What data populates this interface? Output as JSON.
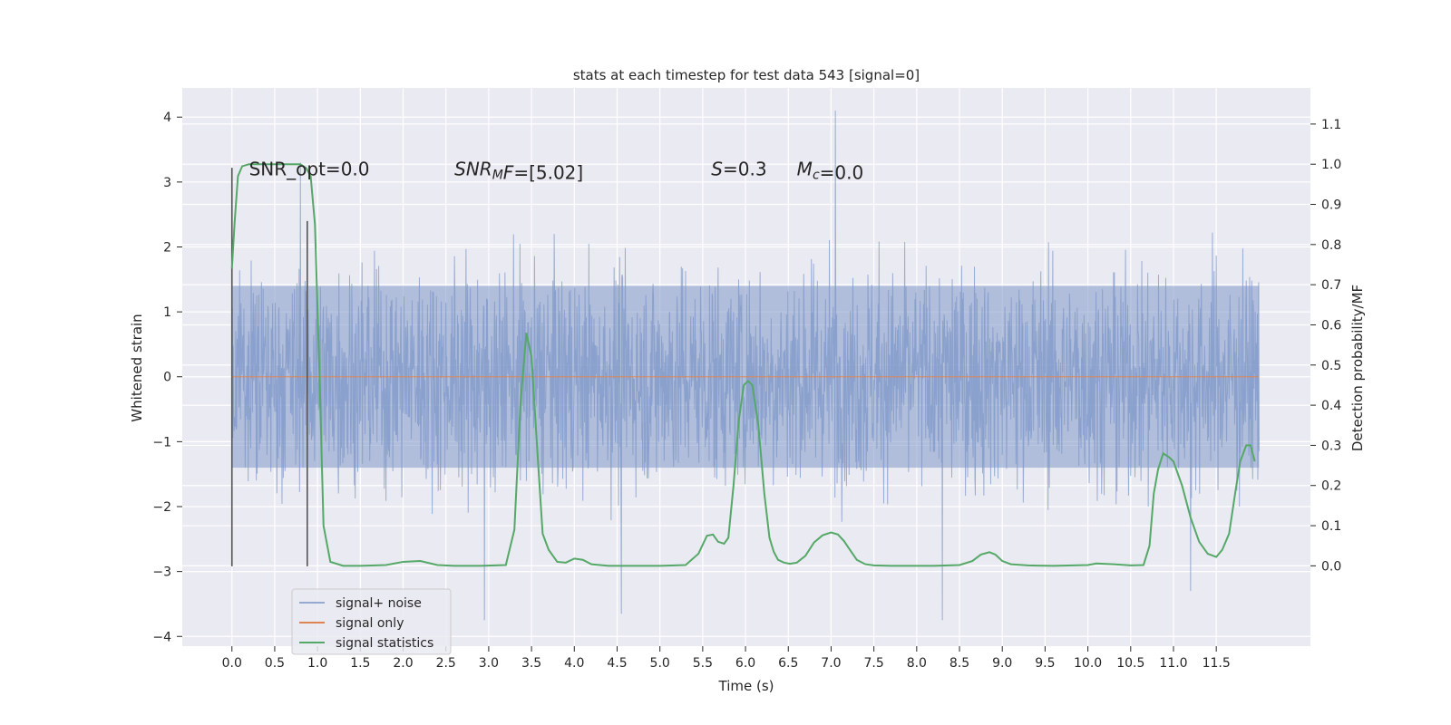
{
  "chart_data": {
    "type": "line",
    "title": "stats at each timestep for test data 543 [signal=0]",
    "xlabel": "Time (s)",
    "ylabel_left": "Whitened strain",
    "ylabel_right": "Detection probability/MF",
    "xlim": [
      -0.58,
      12.6
    ],
    "ylim_left": [
      -4.15,
      4.45
    ],
    "ylim_right": [
      -0.2,
      1.19
    ],
    "x_ticks": [
      0.0,
      0.5,
      1.0,
      1.5,
      2.0,
      2.5,
      3.0,
      3.5,
      4.0,
      4.5,
      5.0,
      5.5,
      6.0,
      6.5,
      7.0,
      7.5,
      8.0,
      8.5,
      9.0,
      9.5,
      10.0,
      10.5,
      11.0,
      11.5
    ],
    "x_tick_labels": [
      "0.0",
      "0.5",
      "1.0",
      "1.5",
      "2.0",
      "2.5",
      "3.0",
      "3.5",
      "4.0",
      "4.5",
      "5.0",
      "5.5",
      "6.0",
      "6.5",
      "7.0",
      "7.5",
      "8.0",
      "8.5",
      "9.0",
      "9.5",
      "10.0",
      "10.5",
      "11.0",
      "11.5"
    ],
    "y_left_ticks": [
      -4,
      -3,
      -2,
      -1,
      0,
      1,
      2,
      3,
      4
    ],
    "y_left_tick_labels": [
      "−4",
      "−3",
      "−2",
      "−1",
      "0",
      "1",
      "2",
      "3",
      "4"
    ],
    "y_right_ticks": [
      0.0,
      0.1,
      0.2,
      0.3,
      0.4,
      0.5,
      0.6,
      0.7,
      0.8,
      0.9,
      1.0,
      1.1
    ],
    "y_right_tick_labels": [
      "0.0",
      "0.1",
      "0.2",
      "0.3",
      "0.4",
      "0.5",
      "0.6",
      "0.7",
      "0.8",
      "0.9",
      "1.0",
      "1.1"
    ],
    "grid": true,
    "legend_position": "bottom-left",
    "colors": {
      "background": "#eaeaf2",
      "grid": "#ffffff",
      "noise": "#7f98c8",
      "signal_only": "#dd8452",
      "statistics": "#55a868",
      "vlines": "#555555"
    },
    "series": [
      {
        "name": "signal+ noise",
        "axis": "left",
        "x_range": [
          0.0,
          12.0
        ],
        "note_style": "dense noise band",
        "band_core": [
          -1.6,
          1.6
        ],
        "typical_peaks": [
          -2.9,
          3.3
        ],
        "extremes": [
          {
            "x": 7.05,
            "y": 4.1
          },
          {
            "x": 0.8,
            "y": 3.3
          },
          {
            "x": 2.95,
            "y": -3.75
          },
          {
            "x": 4.55,
            "y": -3.65
          },
          {
            "x": 8.3,
            "y": -3.75
          },
          {
            "x": 11.2,
            "y": -3.3
          }
        ]
      },
      {
        "name": "signal only",
        "axis": "left",
        "x": [
          0.0,
          12.0
        ],
        "y": [
          0.0,
          0.0
        ]
      },
      {
        "name": "signal statistics",
        "axis": "right",
        "x": [
          0.0,
          0.03,
          0.07,
          0.12,
          0.2,
          0.3,
          0.5,
          0.7,
          0.8,
          0.87,
          0.92,
          0.97,
          1.02,
          1.07,
          1.15,
          1.3,
          1.5,
          1.8,
          2.0,
          2.2,
          2.4,
          2.6,
          2.9,
          3.2,
          3.3,
          3.37,
          3.44,
          3.5,
          3.57,
          3.63,
          3.7,
          3.8,
          3.9,
          4.0,
          4.1,
          4.2,
          4.4,
          4.7,
          5.0,
          5.3,
          5.45,
          5.55,
          5.62,
          5.68,
          5.75,
          5.8,
          5.86,
          5.92,
          5.98,
          6.03,
          6.08,
          6.15,
          6.22,
          6.28,
          6.33,
          6.38,
          6.45,
          6.52,
          6.6,
          6.7,
          6.8,
          6.9,
          7.0,
          7.08,
          7.15,
          7.22,
          7.3,
          7.4,
          7.5,
          7.7,
          7.9,
          8.2,
          8.5,
          8.65,
          8.75,
          8.85,
          8.92,
          9.0,
          9.1,
          9.3,
          9.6,
          10.0,
          10.1,
          10.3,
          10.5,
          10.65,
          10.72,
          10.77,
          10.82,
          10.88,
          10.95,
          11.0,
          11.1,
          11.2,
          11.3,
          11.4,
          11.5,
          11.57,
          11.65,
          11.72,
          11.78,
          11.85,
          11.9,
          11.95
        ],
        "y": [
          0.74,
          0.85,
          0.97,
          0.995,
          1.0,
          1.0,
          1.0,
          1.0,
          1.0,
          0.99,
          0.97,
          0.85,
          0.5,
          0.1,
          0.01,
          0.0,
          0.0,
          0.002,
          0.01,
          0.012,
          0.002,
          0.0,
          0.0,
          0.002,
          0.09,
          0.4,
          0.58,
          0.52,
          0.28,
          0.08,
          0.04,
          0.01,
          0.008,
          0.018,
          0.015,
          0.004,
          0.0,
          0.0,
          0.0,
          0.002,
          0.03,
          0.075,
          0.078,
          0.06,
          0.055,
          0.07,
          0.2,
          0.36,
          0.45,
          0.46,
          0.45,
          0.35,
          0.18,
          0.07,
          0.035,
          0.015,
          0.008,
          0.005,
          0.008,
          0.025,
          0.058,
          0.076,
          0.083,
          0.078,
          0.062,
          0.04,
          0.015,
          0.004,
          0.001,
          0.0,
          0.0,
          0.0,
          0.002,
          0.012,
          0.028,
          0.034,
          0.028,
          0.012,
          0.004,
          0.001,
          0.0,
          0.002,
          0.006,
          0.004,
          0.001,
          0.002,
          0.05,
          0.18,
          0.24,
          0.28,
          0.27,
          0.26,
          0.2,
          0.12,
          0.06,
          0.03,
          0.022,
          0.04,
          0.08,
          0.18,
          0.26,
          0.3,
          0.3,
          0.26
        ]
      }
    ],
    "vertical_lines": [
      {
        "x": 0.0,
        "y_range": [
          -2.92,
          3.22
        ]
      },
      {
        "x": 0.88,
        "y_range": [
          -2.92,
          2.4
        ]
      }
    ],
    "annotations": [
      {
        "id": "snr-opt",
        "parts": [
          {
            "t": "SNR_opt=0.0",
            "italic": false
          }
        ],
        "x": 0.2,
        "y": 3.2
      },
      {
        "id": "snr-mf",
        "parts": [
          {
            "t": "SNR",
            "italic": true
          },
          {
            "t": "M",
            "italic": true,
            "sub": true
          },
          {
            "t": "F",
            "italic": true
          },
          {
            "t": "=[5.02]",
            "italic": false
          }
        ],
        "x": 2.6,
        "y": 3.2
      },
      {
        "id": "s-value",
        "parts": [
          {
            "t": "S",
            "italic": true
          },
          {
            "t": "=0.3",
            "italic": false
          }
        ],
        "x": 5.6,
        "y": 3.2
      },
      {
        "id": "mc-value",
        "parts": [
          {
            "t": "M",
            "italic": true
          },
          {
            "t": "c",
            "italic": true,
            "sub": true
          },
          {
            "t": "=0.0",
            "italic": false
          }
        ],
        "x": 6.6,
        "y": 3.2
      }
    ]
  }
}
